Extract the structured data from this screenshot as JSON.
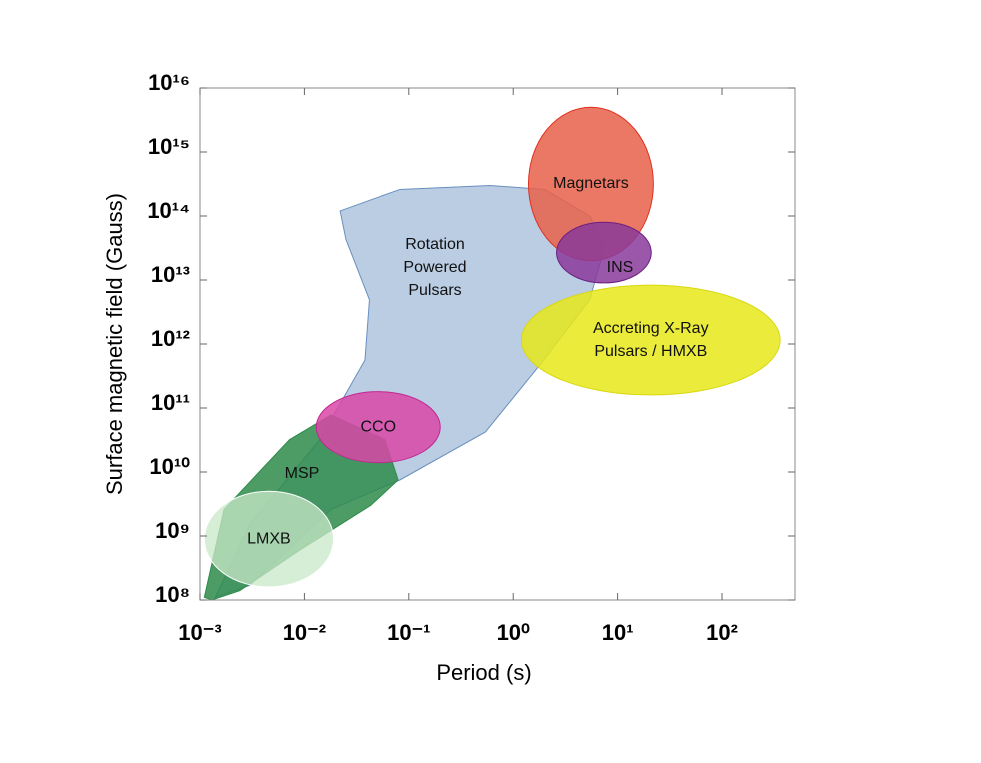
{
  "chart_data": {
    "type": "region",
    "x_label": "Period (s)",
    "y_label": "Surface magnetic field (Gauss)",
    "xscale": "log",
    "yscale": "log",
    "xlim": [
      0.001,
      500
    ],
    "ylim": [
      100000000.0,
      1e+16
    ],
    "xticks": [
      {
        "value": 0.001,
        "label": "10⁻³"
      },
      {
        "value": 0.01,
        "label": "10⁻²"
      },
      {
        "value": 0.1,
        "label": "10⁻¹"
      },
      {
        "value": 1,
        "label": "10⁰"
      },
      {
        "value": 10,
        "label": "10¹"
      },
      {
        "value": 100,
        "label": "10²"
      }
    ],
    "yticks": [
      {
        "value": 100000000.0,
        "label": "10⁸"
      },
      {
        "value": 1000000000.0,
        "label": "10⁹"
      },
      {
        "value": 10000000000.0,
        "label": "10¹⁰"
      },
      {
        "value": 100000000000.0,
        "label": "10¹¹"
      },
      {
        "value": 1000000000000.0,
        "label": "10¹²"
      },
      {
        "value": 10000000000000.0,
        "label": "10¹³"
      },
      {
        "value": 100000000000000.0,
        "label": "10¹⁴"
      },
      {
        "value": 1000000000000000.0,
        "label": "10¹⁵"
      },
      {
        "value": 1e+16,
        "label": "10¹⁶"
      }
    ],
    "regions": [
      {
        "label": [
          "Rotation",
          "Powered",
          "Pulsars"
        ],
        "shape": "polygon",
        "color": "#a9c0dc",
        "edge": "#6a8fbf",
        "x": [
          0.022,
          0.082,
          0.6,
          2.0,
          5.4,
          7.6,
          5.4,
          1.8,
          0.54,
          0.082,
          0.018,
          0.003,
          0.0014,
          0.003,
          0.014,
          0.038,
          0.042,
          0.025
        ],
        "y": [
          120000000000000.0,
          260000000000000.0,
          300000000000000.0,
          260000000000000.0,
          100000000000000.0,
          35000000000000.0,
          4900000000000.0,
          470000000000.0,
          42000000000.0,
          7500000000.0,
          2600000000.0,
          170000000.0,
          110000000.0,
          1500000000.0,
          32000000000.0,
          560000000000.0,
          4900000000000.0,
          43000000000000.0
        ]
      },
      {
        "label": [
          "MSP"
        ],
        "shape": "polygon",
        "color": "#2e8b4a",
        "edge": "#2e8b4a",
        "x": [
          0.0011,
          0.0017,
          0.0072,
          0.018,
          0.059,
          0.079,
          0.043,
          0.009,
          0.0024,
          0.0013
        ],
        "y": [
          110000000.0,
          2600000000.0,
          32000000000.0,
          78000000000.0,
          32000000000.0,
          7500000000.0,
          3000000000.0,
          600000000.0,
          140000000.0,
          100000000.0
        ]
      },
      {
        "label": [
          "Magnetars"
        ],
        "shape": "ellipse",
        "color": "#e8604a",
        "edge": "#e03020",
        "xrange": [
          1.4,
          22
        ],
        "yrange": [
          20000000000000.0,
          5000000000000000.0
        ]
      },
      {
        "label": [
          "INS"
        ],
        "shape": "ellipse",
        "color": "#8a3a9a",
        "edge": "#6a2080",
        "xrange": [
          2.6,
          21
        ],
        "yrange": [
          9000000000000.0,
          80000000000000.0
        ]
      },
      {
        "label": [
          "Accreting X-Ray",
          "Pulsars / HMXB"
        ],
        "shape": "ellipse",
        "color": "#e8e81a",
        "edge": "#d8d810",
        "xrange": [
          1.2,
          360
        ],
        "yrange": [
          160000000000.0,
          8300000000000.0
        ]
      },
      {
        "label": [
          "CCO"
        ],
        "shape": "ellipse",
        "color": "#d946a8",
        "edge": "#c02890",
        "xrange": [
          0.013,
          0.2
        ],
        "yrange": [
          14000000000.0,
          180000000000.0
        ]
      },
      {
        "label": [
          "LMXB"
        ],
        "shape": "ellipse",
        "color": "#c8e8c8",
        "edge": "#ffffff",
        "xrange": [
          0.0011,
          0.019
        ],
        "yrange": [
          160000000.0,
          5000000000.0
        ]
      }
    ]
  }
}
